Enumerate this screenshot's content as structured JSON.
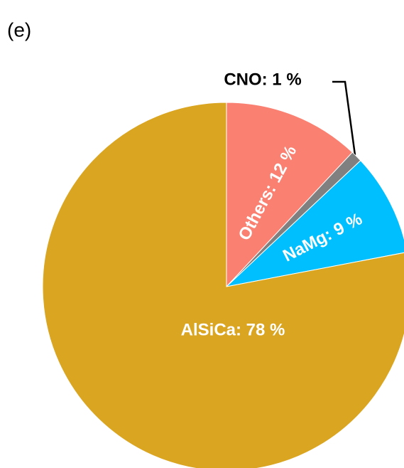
{
  "chart_data": {
    "type": "pie",
    "panel_label": "(e)",
    "values": [
      12,
      1,
      9,
      78
    ],
    "value_labels": [
      "Others: 12 %",
      "CNO: 1 %",
      "NaMg: 9 %",
      "AlSiCa: 78 %"
    ],
    "colors": [
      "#fa8072",
      "#808080",
      "#00bfff",
      "#daa520"
    ]
  }
}
